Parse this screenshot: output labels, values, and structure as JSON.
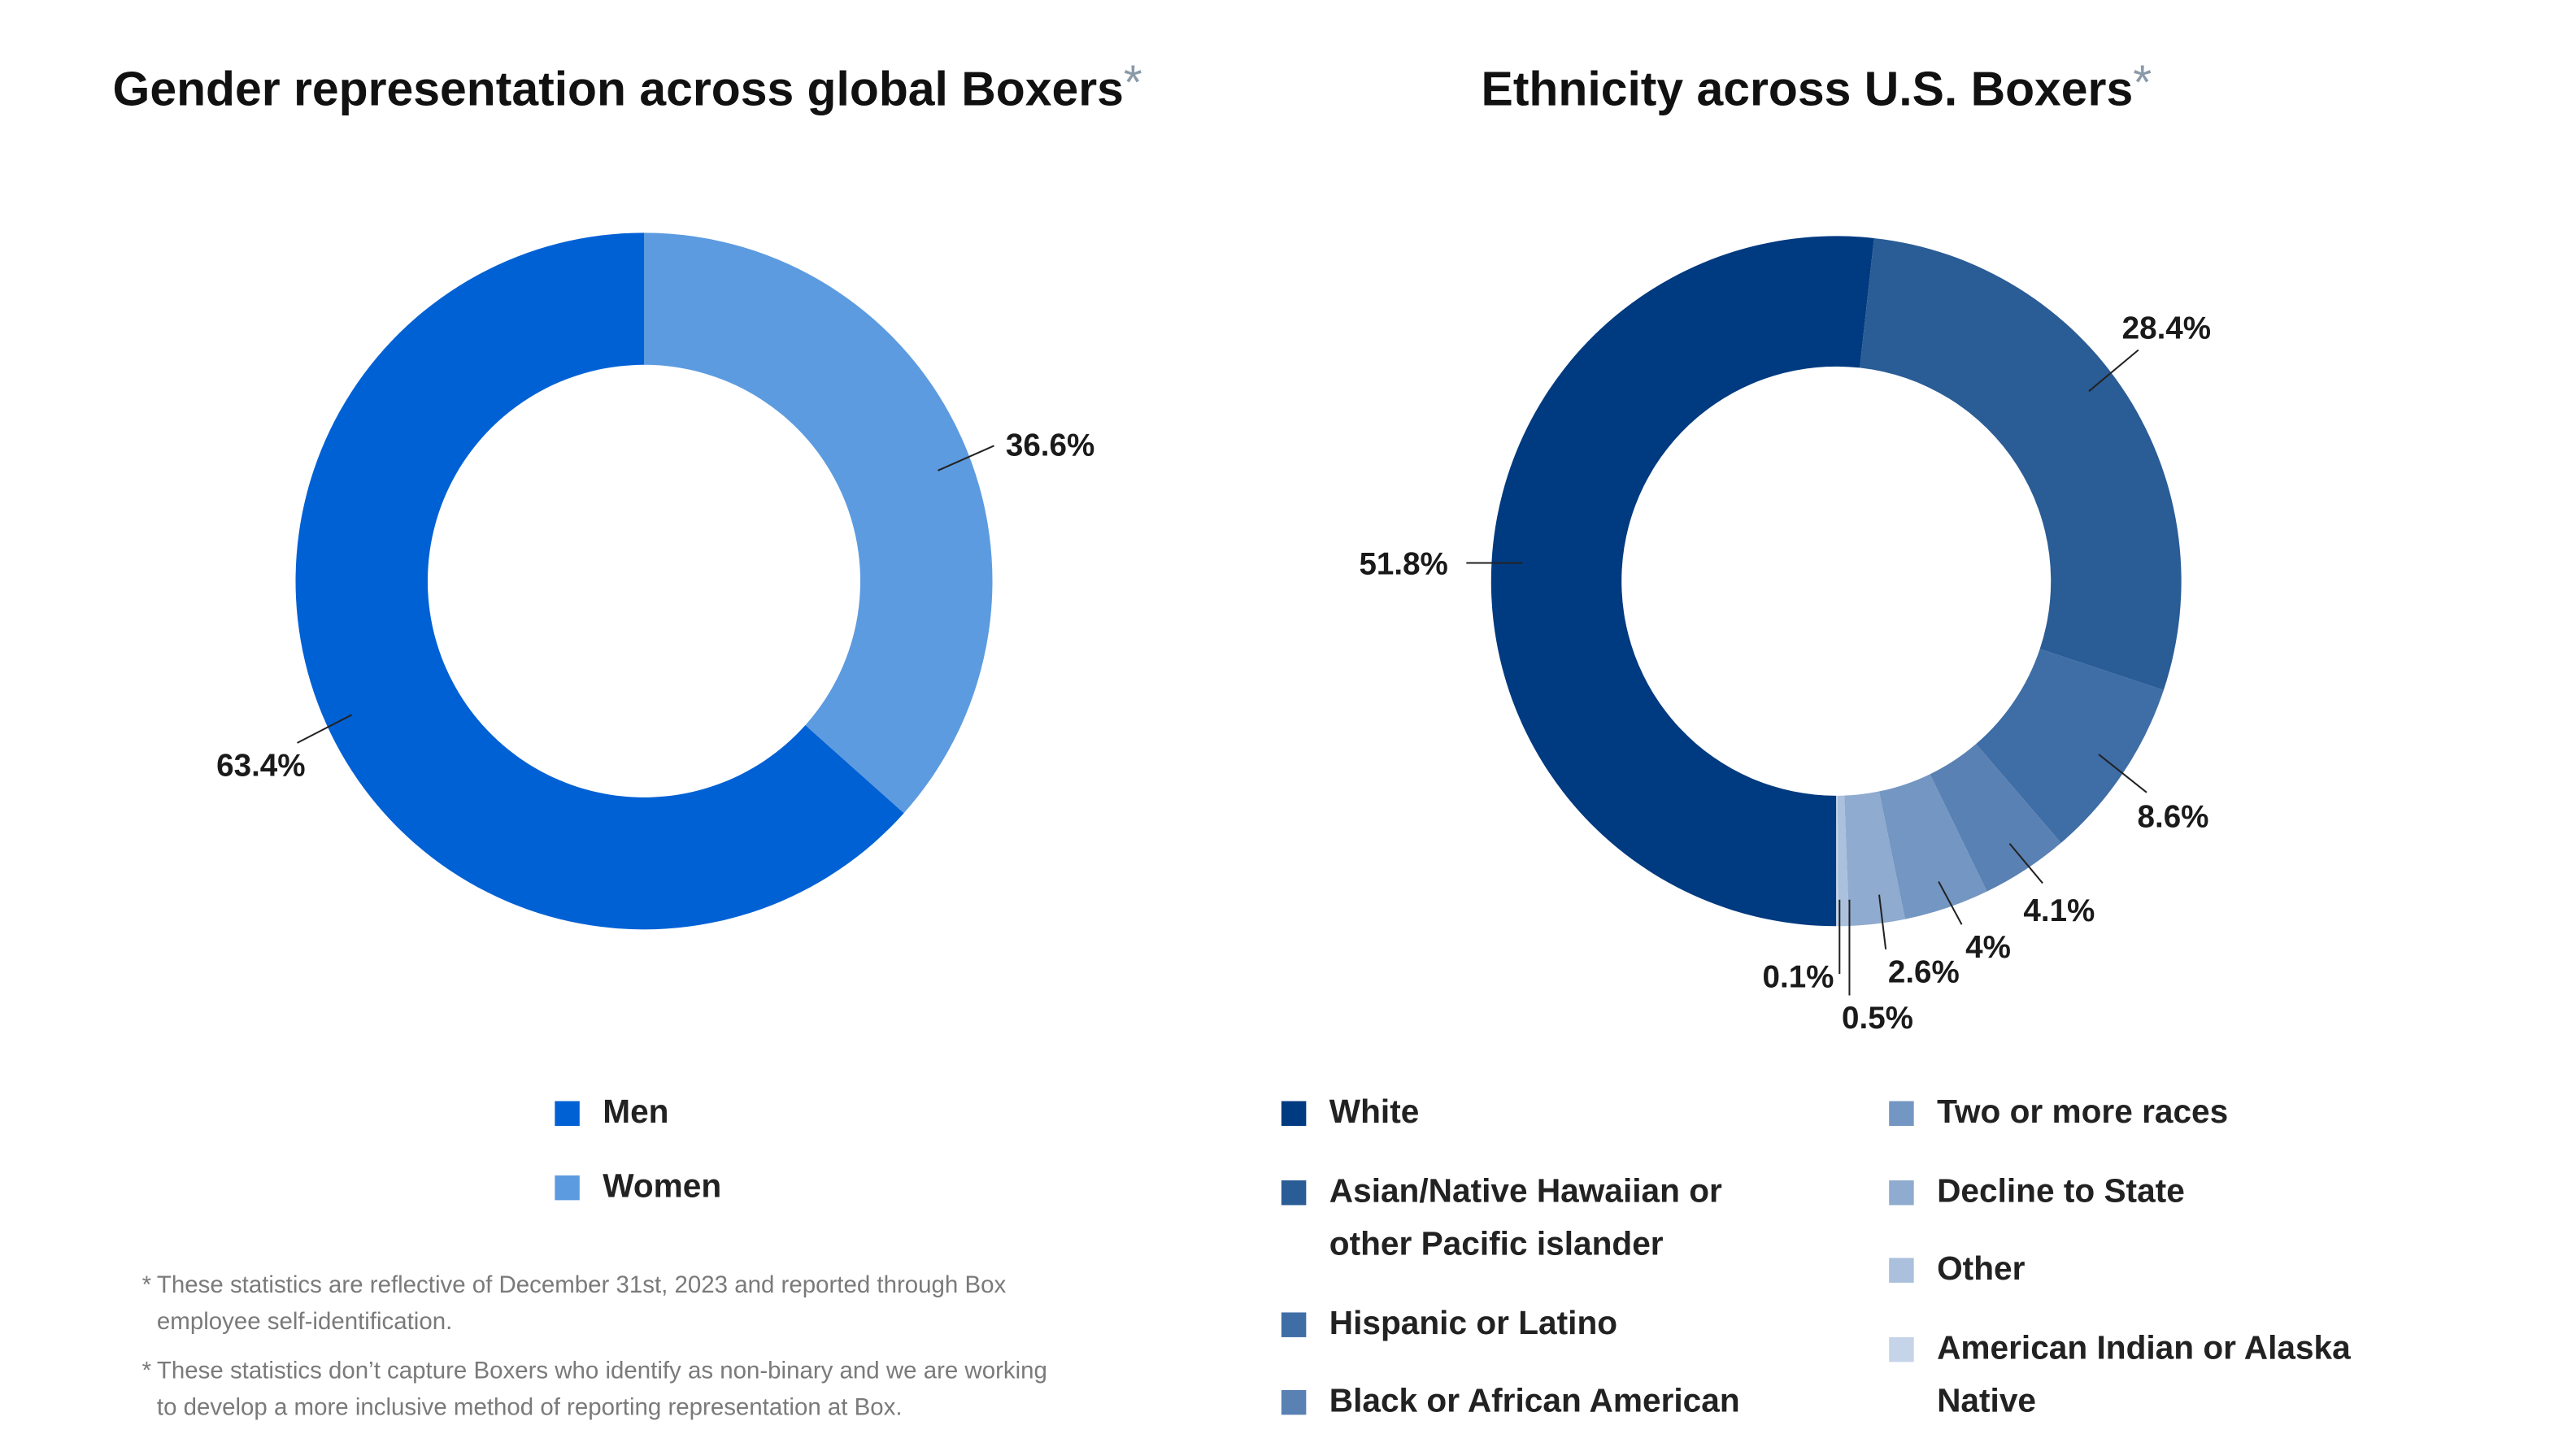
{
  "chart_data": [
    {
      "type": "donut",
      "title": "Gender representation across global Boxers",
      "title_mark": "*",
      "categories": [
        "Men",
        "Women"
      ],
      "values": [
        63.4,
        36.6
      ],
      "value_labels": [
        "63.4%",
        "36.6%"
      ],
      "colors": [
        "#0061d5",
        "#5c9be0"
      ]
    },
    {
      "type": "donut",
      "title": "Ethnicity across U.S. Boxers",
      "title_mark": "*",
      "categories": [
        "White",
        "Asian/Native Hawaiian or other Pacific islander",
        "Hispanic or Latino",
        "Black or African American",
        "Two or more races",
        "Decline to State",
        "Other",
        "American Indian or Alaska Native"
      ],
      "values": [
        51.8,
        28.4,
        8.6,
        4.1,
        4,
        2.6,
        0.5,
        0.1
      ],
      "value_labels": [
        "51.8%",
        "28.4%",
        "8.6%",
        "4.1%",
        "4%",
        "2.6%",
        "0.5%",
        "0.1%"
      ],
      "colors": [
        "#003a80",
        "#2a5c96",
        "#3f6da6",
        "#5a81b3",
        "#7496c2",
        "#8fabcf",
        "#aac0dc",
        "#c5d4e8"
      ]
    }
  ],
  "footnotes": [
    {
      "mark": "*",
      "text": "These statistics are reflective of December 31st, 2023 and reported through Box employee self-identification."
    },
    {
      "mark": "*",
      "text": "These statistics don’t capture Boxers who identify as non-binary and we are working to develop a more inclusive method of reporting representation at Box."
    }
  ]
}
